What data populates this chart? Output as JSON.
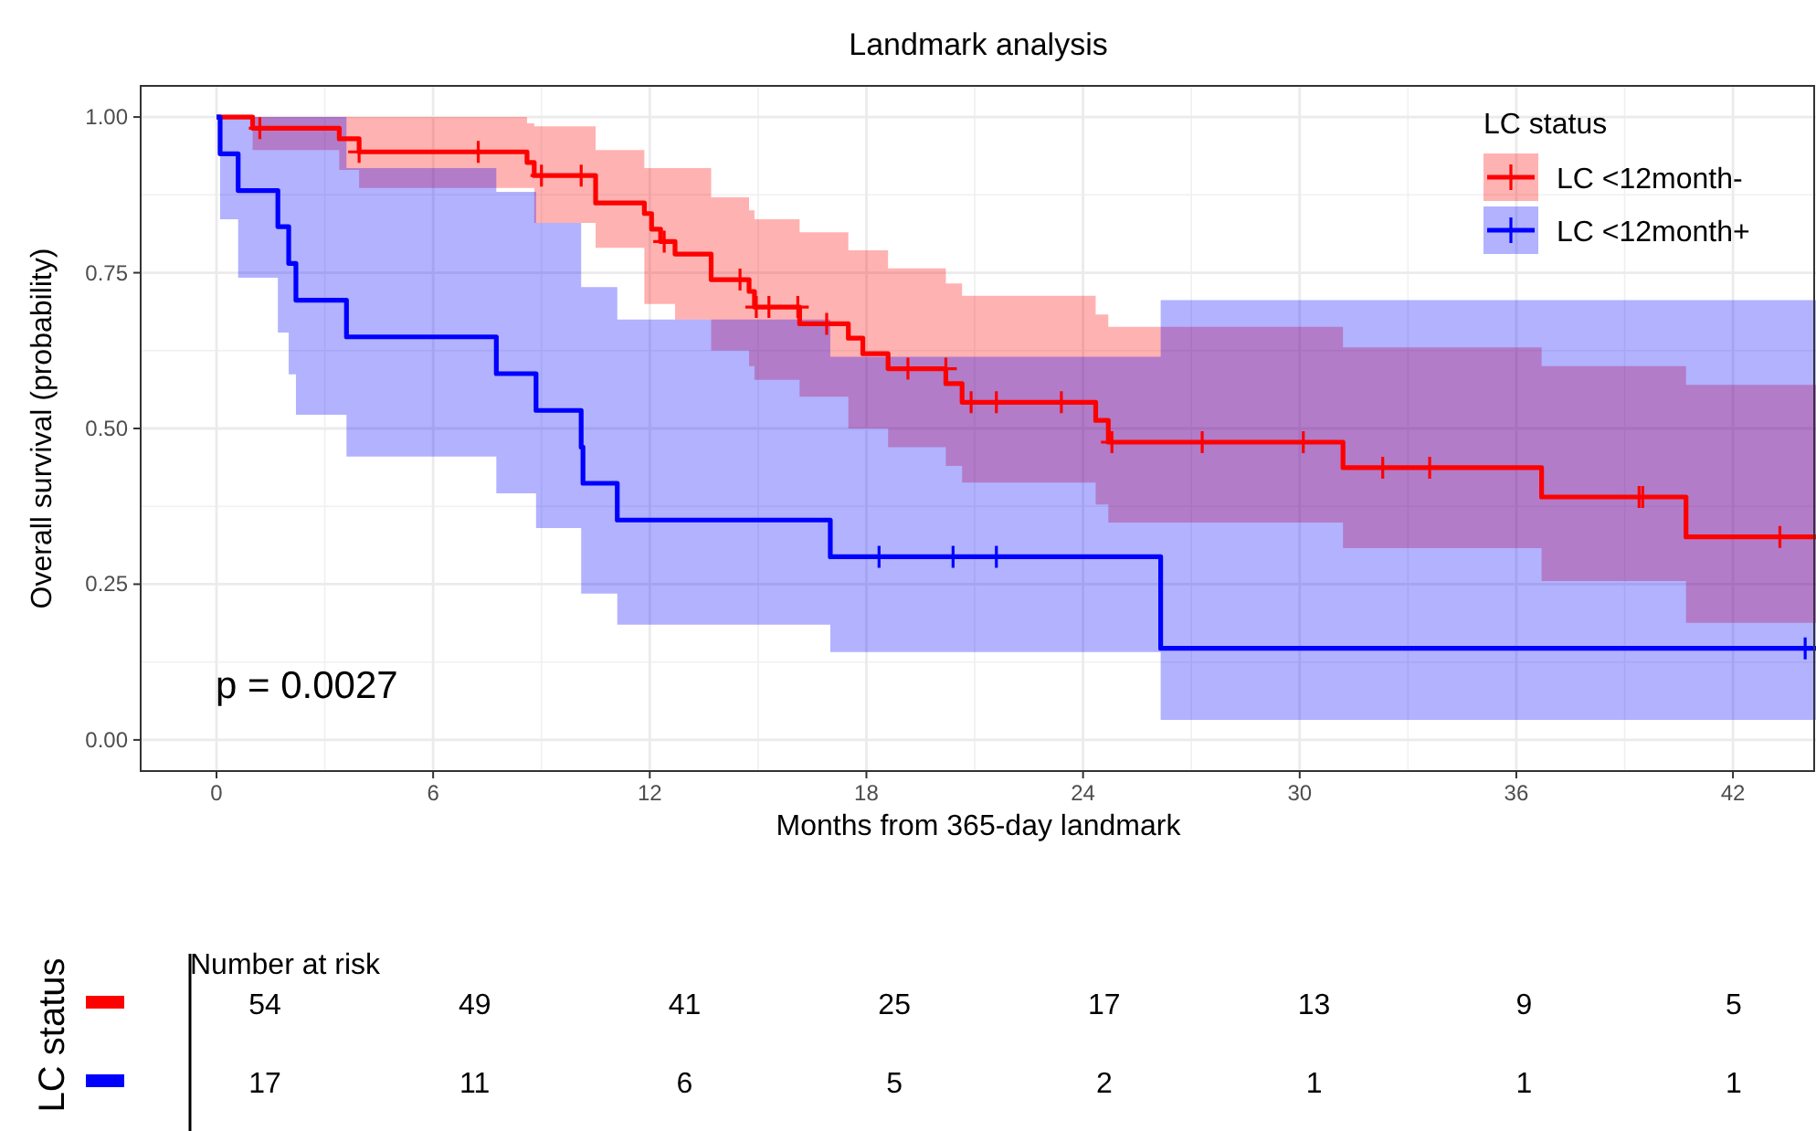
{
  "chart_data": [
    {
      "type": "step",
      "title": "Landmark analysis",
      "xlabel": "Months from 365-day landmark",
      "ylabel": "Overall survival (probability)",
      "legend_title": "LC status",
      "legend": "top right",
      "grid": true,
      "xlim": [
        -2.1,
        44.3
      ],
      "xticks": [
        0,
        6,
        12,
        18,
        24,
        30,
        36,
        42
      ],
      "ylim": [
        -0.05,
        1.05
      ],
      "yticks": [
        {
          "value": 0,
          "label": "0.00"
        },
        {
          "value": 0.25,
          "label": "0.25"
        },
        {
          "value": 0.5,
          "label": "0.50"
        },
        {
          "value": 0.75,
          "label": "0.75"
        },
        {
          "value": 1,
          "label": "1.00"
        }
      ],
      "annotations": [
        "p = 0.0027"
      ],
      "series": [
        {
          "name": "LC <12month-",
          "color": "#ff0000",
          "x": [
            0,
            1.0,
            3.4,
            3.95,
            8.6,
            8.8,
            10.5,
            11.85,
            12.05,
            12.3,
            12.7,
            13.7,
            14.75,
            14.9,
            16.15,
            17.5,
            17.9,
            18.6,
            20.2,
            20.65,
            24.35,
            24.7,
            31.2,
            36.7,
            40.7,
            44.3
          ],
          "values": [
            1,
            0.982,
            0.965,
            0.944,
            0.927,
            0.906,
            0.862,
            0.845,
            0.82,
            0.8,
            0.78,
            0.739,
            0.72,
            0.695,
            0.668,
            0.645,
            0.62,
            0.596,
            0.572,
            0.542,
            0.513,
            0.478,
            0.437,
            0.39,
            0.326,
            0.326
          ],
          "lower": [
            1,
            0.947,
            0.915,
            0.886,
            0.886,
            0.83,
            0.79,
            0.7,
            0.7,
            0.7,
            0.675,
            0.625,
            0.6,
            0.578,
            0.551,
            0.5,
            0.5,
            0.47,
            0.44,
            0.413,
            0.378,
            0.349,
            0.308,
            0.255,
            0.188,
            0.188
          ],
          "upper": [
            1,
            1,
            1,
            1,
            0.99,
            0.985,
            0.947,
            0.918,
            0.918,
            0.918,
            0.918,
            0.871,
            0.85,
            0.836,
            0.815,
            0.786,
            0.786,
            0.757,
            0.733,
            0.713,
            0.683,
            0.663,
            0.63,
            0.6,
            0.57,
            0.57
          ]
        },
        {
          "name": "LC <12month+",
          "color": "#0000ff",
          "x": [
            0,
            0.1,
            0.6,
            1.7,
            2.0,
            2.2,
            3.6,
            7.75,
            8.85,
            10.1,
            10.15,
            11.1,
            17.0,
            26.15,
            44.3
          ],
          "values": [
            1,
            0.941,
            0.882,
            0.824,
            0.765,
            0.706,
            0.647,
            0.588,
            0.529,
            0.47,
            0.412,
            0.353,
            0.294,
            0.147,
            0.147
          ],
          "lower": [
            1,
            0.836,
            0.742,
            0.654,
            0.587,
            0.522,
            0.455,
            0.396,
            0.34,
            0.235,
            0.235,
            0.185,
            0.141,
            0.032,
            0.032
          ],
          "upper": [
            1,
            1,
            1,
            1,
            1,
            1,
            0.918,
            0.88,
            0.83,
            0.727,
            0.727,
            0.675,
            0.615,
            0.706,
            0.706
          ]
        },
        {
          "type": "scatter",
          "marker": "cross",
          "color": "#ff0000",
          "x": [
            1.2,
            3.95,
            7.25,
            9.0,
            10.1,
            12.4,
            14.5,
            14.95,
            15.3,
            16.1,
            16.9,
            19.15,
            20.2,
            20.9,
            21.6,
            23.4,
            24.8,
            27.3,
            30.1,
            32.3,
            33.6,
            39.4,
            39.5,
            43.3
          ],
          "values": [
            0.982,
            0.944,
            0.944,
            0.906,
            0.906,
            0.8,
            0.739,
            0.695,
            0.695,
            0.695,
            0.668,
            0.596,
            0.596,
            0.542,
            0.542,
            0.542,
            0.478,
            0.478,
            0.478,
            0.437,
            0.437,
            0.39,
            0.39,
            0.326
          ]
        },
        {
          "type": "scatter",
          "marker": "cross",
          "color": "#0000ff",
          "x": [
            18.35,
            20.4,
            21.6,
            44.0
          ],
          "values": [
            0.294,
            0.294,
            0.294,
            0.147
          ]
        }
      ]
    },
    {
      "type": "heatmap",
      "title": "Number at risk",
      "ylabel": "LC status",
      "data_labels": true,
      "categories": [
        null,
        null,
        null,
        null,
        null,
        null,
        null,
        null
      ],
      "y_categories": [
        null,
        null
      ],
      "colors": [
        "#ff0000",
        "#0000ff"
      ],
      "cells": [
        [
          54,
          49,
          41,
          25,
          17,
          13,
          9,
          5
        ],
        [
          17,
          11,
          6,
          5,
          2,
          1,
          1,
          1
        ]
      ]
    }
  ]
}
